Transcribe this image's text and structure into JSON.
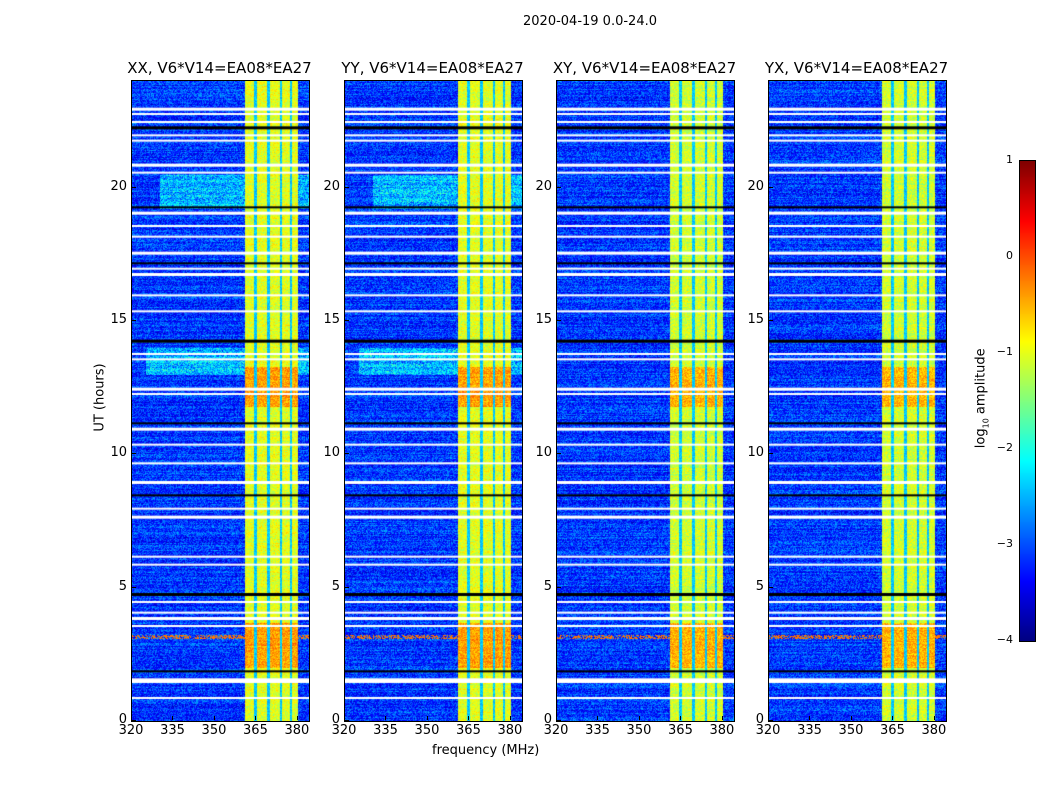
{
  "chart_data": {
    "type": "heatmap",
    "title": "2020-04-19 0.0-24.0",
    "xlabel": "frequency (MHz)",
    "ylabel": "UT (hours)",
    "xlim": [
      320,
      384
    ],
    "ylim": [
      0,
      24
    ],
    "xticks": [
      320,
      335,
      350,
      365,
      380
    ],
    "yticks": [
      0,
      5,
      10,
      15,
      20
    ],
    "panels": [
      {
        "title": "XX, V6*V14=EA08*EA27",
        "pol": "XX"
      },
      {
        "title": "YY, V6*V14=EA08*EA27",
        "pol": "YY"
      },
      {
        "title": "XY, V6*V14=EA08*EA27",
        "pol": "XY"
      },
      {
        "title": "YX, V6*V14=EA08*EA27",
        "pol": "YX"
      }
    ],
    "bright_band_mhz": [
      360.5,
      380
    ],
    "band_gaps_mhz": [
      364.5,
      369.2,
      373.6,
      377.2
    ],
    "flagged_hours": [
      23.0,
      22.8,
      22.5,
      22.3,
      22.0,
      21.8,
      20.9,
      20.6,
      19.3,
      19.1,
      18.6,
      18.2,
      17.6,
      17.2,
      17.0,
      16.8,
      16.0,
      15.4,
      14.3,
      13.8,
      13.6,
      12.5,
      12.3,
      11.2,
      11.0,
      10.4,
      9.7,
      9.0,
      8.5,
      8.0,
      7.7,
      6.2,
      5.9,
      4.8,
      4.5,
      4.1,
      3.9,
      3.6,
      1.9,
      1.6,
      1.5,
      0.9
    ],
    "colorbar": {
      "label_prefix": "log",
      "label_sub": "10",
      "label_suffix": " amplitude",
      "colormap": "jet",
      "range": [
        -4,
        1
      ],
      "ticks": [
        1,
        0,
        -1,
        -2,
        -3,
        -4
      ],
      "tick_labels": [
        "1",
        "0",
        "−1",
        "−2",
        "−3",
        "−4"
      ]
    }
  }
}
